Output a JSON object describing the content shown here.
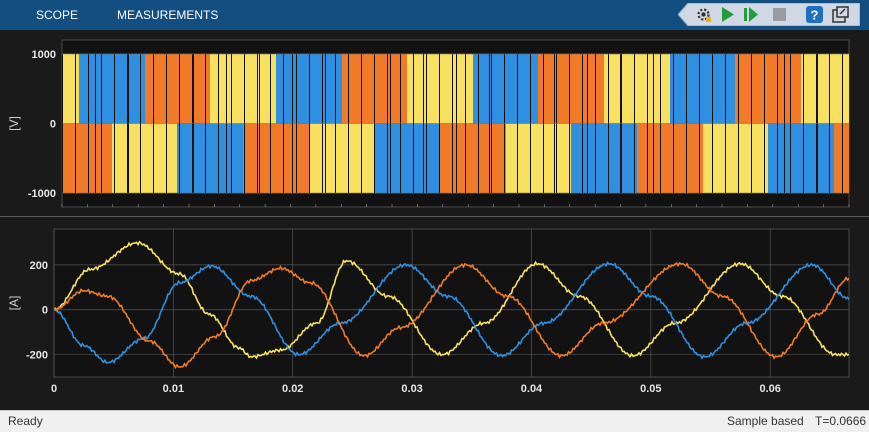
{
  "toolstrip": {
    "tabs": [
      {
        "label": "SCOPE"
      },
      {
        "label": "MEASUREMENTS"
      }
    ],
    "quick_access": [
      "settings-gear-icon",
      "run-icon",
      "step-forward-icon",
      "stop-icon",
      "help-icon",
      "undock-icon"
    ]
  },
  "colors": {
    "toolstrip": "#124e80",
    "plot_background": "#121212",
    "phase_a": "#2f8fe0",
    "phase_b": "#f07a28",
    "phase_c": "#f8e060",
    "grid": "#555555"
  },
  "chart_data": [
    {
      "type": "line",
      "title": "",
      "ylabel": "[V]",
      "xlim": [
        0,
        0.0666
      ],
      "ylim": [
        -1200,
        1200
      ],
      "yticks": [
        -1000,
        0,
        1000
      ],
      "grid": true,
      "description_of_series": "PWM line voltages switching between -1000 and 1000",
      "series": [
        {
          "color": "#2f8fe0",
          "amplitude": 1000,
          "fundamental_hz": 60
        },
        {
          "color": "#f07a28",
          "amplitude": 1000,
          "fundamental_hz": 60
        },
        {
          "color": "#f8e060",
          "amplitude": 1000,
          "fundamental_hz": 60
        }
      ]
    },
    {
      "type": "line",
      "title": "",
      "ylabel": "[A]",
      "xlabel": "",
      "xlim": [
        0,
        0.0666
      ],
      "ylim": [
        -300,
        360
      ],
      "yticks": [
        -200,
        0,
        200
      ],
      "xticks": [
        0,
        0.01,
        0.02,
        0.03,
        0.04,
        0.05,
        0.06
      ],
      "xticklabels": [
        "0",
        "0.01",
        "0.02",
        "0.03",
        "0.04",
        "0.05",
        "0.06"
      ],
      "grid": true,
      "series": [
        {
          "color": "#f8e060",
          "points": [
            [
              0,
              0
            ],
            [
              0.003,
              180
            ],
            [
              0.007,
              298
            ],
            [
              0.0105,
              160
            ],
            [
              0.013,
              -20
            ],
            [
              0.0155,
              -170
            ],
            [
              0.0165,
              -210
            ],
            [
              0.019,
              -180
            ],
            [
              0.022,
              -60
            ],
            [
              0.0245,
              218
            ],
            [
              0.028,
              60
            ],
            [
              0.0325,
              -200
            ],
            [
              0.036,
              -60
            ],
            [
              0.0405,
              205
            ],
            [
              0.044,
              60
            ],
            [
              0.0485,
              -205
            ],
            [
              0.052,
              -60
            ],
            [
              0.0575,
              205
            ],
            [
              0.061,
              60
            ],
            [
              0.0655,
              -200
            ]
          ]
        },
        {
          "color": "#2f8fe0",
          "points": [
            [
              0,
              0
            ],
            [
              0.0025,
              -160
            ],
            [
              0.0045,
              -235
            ],
            [
              0.0075,
              -130
            ],
            [
              0.0105,
              120
            ],
            [
              0.0132,
              195
            ],
            [
              0.0165,
              60
            ],
            [
              0.0205,
              -200
            ],
            [
              0.024,
              -60
            ],
            [
              0.0295,
              200
            ],
            [
              0.033,
              60
            ],
            [
              0.0375,
              -205
            ],
            [
              0.041,
              -60
            ],
            [
              0.0465,
              205
            ],
            [
              0.05,
              60
            ],
            [
              0.0545,
              -210
            ],
            [
              0.058,
              -60
            ],
            [
              0.0635,
              200
            ],
            [
              0.0666,
              50
            ]
          ]
        },
        {
          "color": "#f07a28",
          "points": [
            [
              0,
              0
            ],
            [
              0.0025,
              85
            ],
            [
              0.0045,
              60
            ],
            [
              0.008,
              -140
            ],
            [
              0.0105,
              -255
            ],
            [
              0.0135,
              -120
            ],
            [
              0.0165,
              130
            ],
            [
              0.019,
              185
            ],
            [
              0.0215,
              120
            ],
            [
              0.026,
              -205
            ],
            [
              0.029,
              -80
            ],
            [
              0.0345,
              200
            ],
            [
              0.038,
              60
            ],
            [
              0.0425,
              -205
            ],
            [
              0.046,
              -60
            ],
            [
              0.0525,
              205
            ],
            [
              0.056,
              60
            ],
            [
              0.0605,
              -210
            ],
            [
              0.064,
              -20
            ],
            [
              0.0666,
              140
            ]
          ]
        }
      ]
    }
  ],
  "statusbar": {
    "left": "Ready",
    "mode": "Sample based",
    "time": "T=0.0666"
  }
}
